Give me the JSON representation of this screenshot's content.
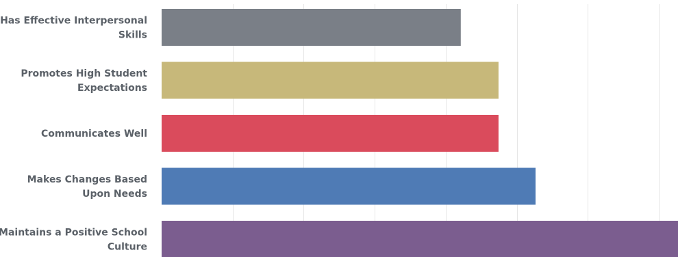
{
  "chart_data": {
    "type": "bar",
    "orientation": "horizontal",
    "categories": [
      [
        "Has Effective Interpersonal",
        "Skills"
      ],
      [
        "Promotes High Student",
        "Expectations"
      ],
      [
        "Communicates Well"
      ],
      [
        "Makes Changes Based",
        "Upon Needs"
      ],
      [
        "Maintains a Positive School",
        "Culture"
      ]
    ],
    "values": [
      4.2,
      4.73,
      4.73,
      5.25,
      7.4
    ],
    "colors": [
      "#7a7f87",
      "#c7b87a",
      "#da4b5c",
      "#4f7bb5",
      "#7b5d8f"
    ],
    "xlim": [
      0,
      7.25
    ],
    "grid": true,
    "title": "",
    "xlabel": "",
    "ylabel": ""
  }
}
